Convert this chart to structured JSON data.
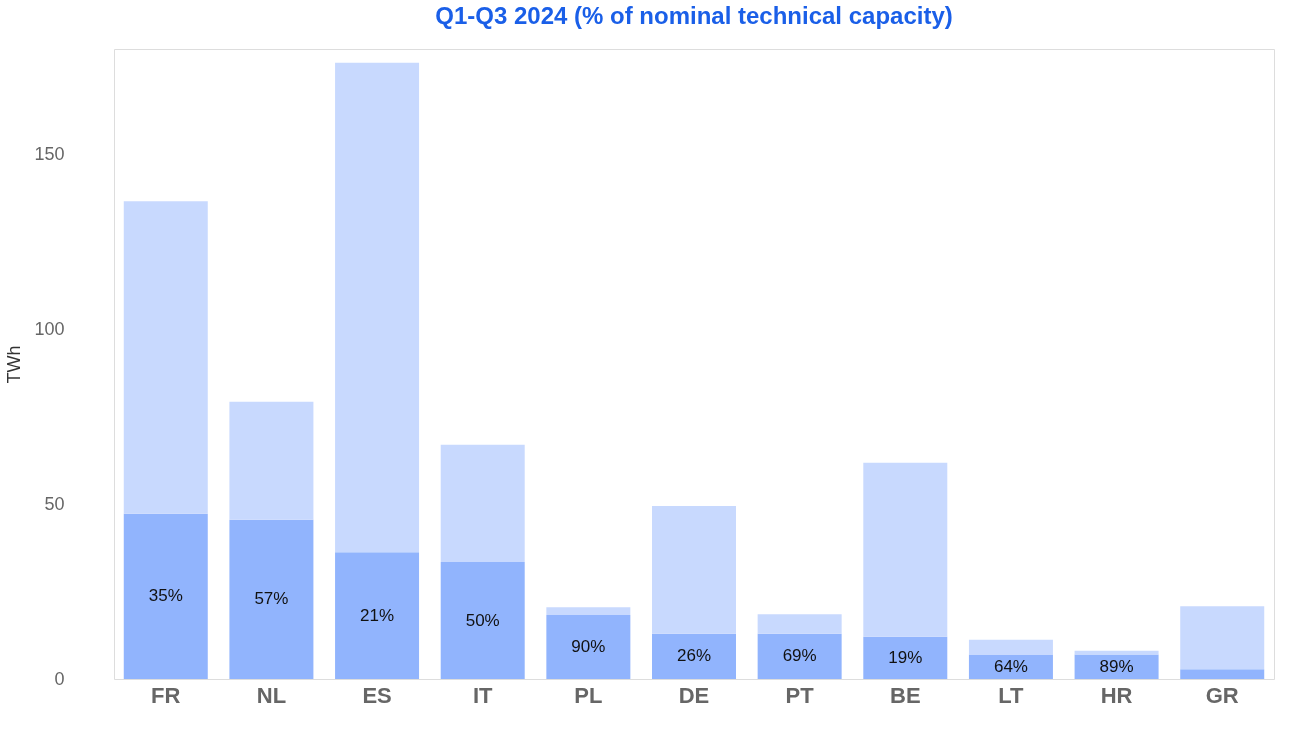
{
  "chart_data": {
    "type": "bar",
    "stacked": true,
    "title": "Q1-Q3 2024 (% of nominal technical capacity)",
    "ylabel": "TWh",
    "categories": [
      "FR",
      "NL",
      "ES",
      "IT",
      "PL",
      "DE",
      "PT",
      "BE",
      "LT",
      "HR",
      "GR"
    ],
    "series": [
      {
        "color": "#91b4fd",
        "values": [
          47.2,
          45.5,
          36.2,
          33.4,
          18.3,
          12.9,
          12.9,
          12.1,
          7.0,
          7.0,
          2.8
        ]
      },
      {
        "color": "#c8d9fe",
        "values": [
          89.3,
          33.7,
          139.9,
          33.5,
          2.2,
          36.5,
          5.6,
          49.7,
          4.2,
          1.1,
          18.0
        ]
      }
    ],
    "annotations": [
      "35%",
      "57%",
      "21%",
      "50%",
      "90%",
      "26%",
      "69%",
      "19%",
      "64%",
      "89%"
    ],
    "ylim": [
      0,
      180
    ],
    "yticks": [
      0,
      50,
      100,
      150
    ]
  }
}
